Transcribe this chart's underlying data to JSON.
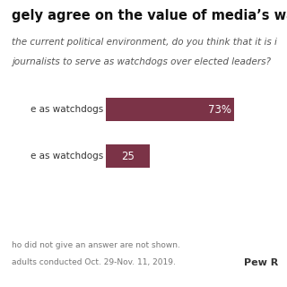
{
  "title_line1": "gely agree on the value of media’s watchdog r",
  "subtitle_line1": "the current political environment, do you think that it is i",
  "subtitle_line2": "journalists to serve as watchdogs over elected leaders?",
  "bars": [
    {
      "label": "e as watchdogs",
      "value": 73,
      "display": "73%"
    },
    {
      "label": "e as watchdogs",
      "value": 25,
      "display": "25"
    }
  ],
  "bar_color": "#7b3347",
  "bar_max": 100,
  "footnote_line1": "ho did not give an answer are not shown.",
  "footnote_line2": "adults conducted Oct. 29-Nov. 11, 2019.",
  "pew_label": "Pew R",
  "bg_color": "#ffffff",
  "title_fontsize": 10.5,
  "subtitle_fontsize": 7.5,
  "label_fontsize": 7.5,
  "value_fontsize": 8.5,
  "footnote_fontsize": 6.5
}
